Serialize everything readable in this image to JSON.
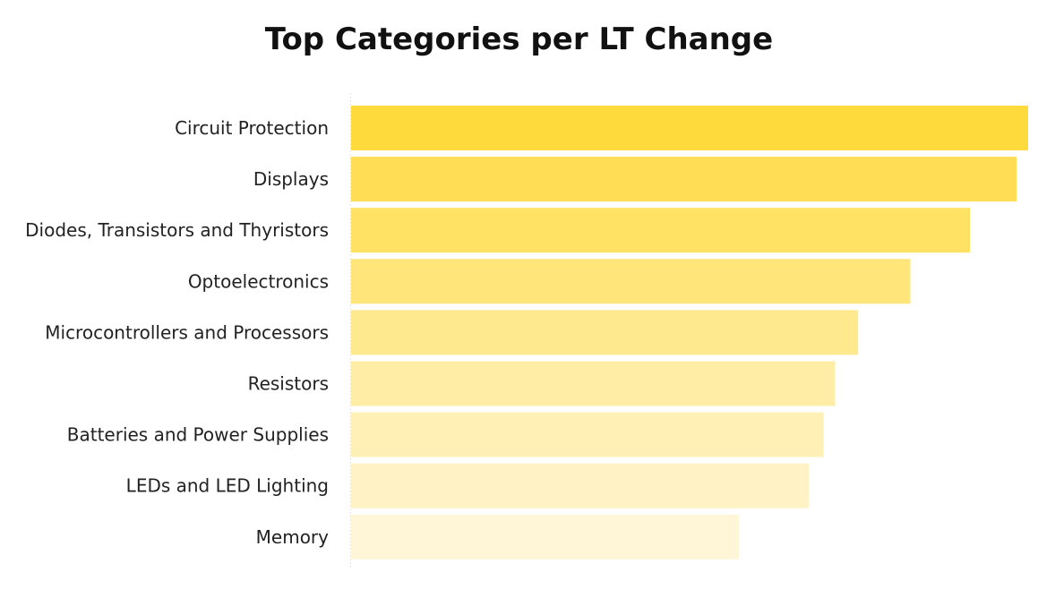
{
  "chart_data": {
    "type": "bar",
    "orientation": "horizontal",
    "title": "Top Categories per LT Change",
    "xlabel": "",
    "ylabel": "",
    "xlim": [
      0,
      100
    ],
    "grid": false,
    "legend": "none",
    "categories": [
      "Circuit Protection",
      "Displays",
      "Diodes, Transistors and Thyristors",
      "Optoelectronics",
      "Microcontrollers and Processors",
      "Resistors",
      "Batteries and Power Supplies",
      "LEDs and LED Lighting",
      "Memory"
    ],
    "values": [
      100,
      98.3,
      91.4,
      82.6,
      74.9,
      71.5,
      69.8,
      67.6,
      57.3
    ],
    "colors": [
      "#FFDA3D",
      "#FFDE55",
      "#FFE264",
      "#FFE57A",
      "#FFE98F",
      "#FFEDA5",
      "#FFF0B5",
      "#FFF3C5",
      "#FFF6D8"
    ]
  }
}
